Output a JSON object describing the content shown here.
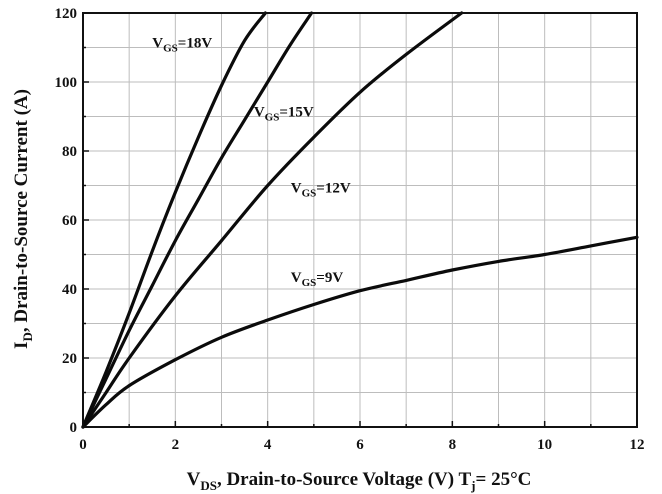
{
  "chart_data": {
    "type": "line",
    "xlabel": {
      "main": "V",
      "sub": "DS",
      "rest": ", Drain-to-Source Voltage (V) T",
      "sub2": "j",
      "tail": "= 25°C"
    },
    "ylabel": {
      "main": "I",
      "sub": "D",
      "rest": ", Drain-to-Source Current (A)"
    },
    "xlim": [
      0,
      12
    ],
    "ylim": [
      0,
      120
    ],
    "xticks": [
      0,
      2,
      4,
      6,
      8,
      10,
      12
    ],
    "yticks": [
      0,
      20,
      40,
      60,
      80,
      100,
      120
    ],
    "grid": true,
    "series": [
      {
        "label_main": "V",
        "label_sub": "GS",
        "label_rest": "=18V",
        "x": [
          0,
          0.5,
          1.0,
          1.5,
          2.0,
          2.5,
          3.0,
          3.5,
          3.95
        ],
        "y": [
          0,
          16,
          33,
          51,
          68,
          84,
          99,
          112,
          120
        ]
      },
      {
        "label_main": "V",
        "label_sub": "GS",
        "label_rest": "=15V",
        "x": [
          0,
          0.5,
          1.0,
          1.5,
          2.0,
          2.5,
          3.0,
          3.5,
          4.0,
          4.5,
          4.95
        ],
        "y": [
          0,
          14,
          28,
          41,
          54,
          66,
          78,
          89,
          100,
          111,
          120
        ]
      },
      {
        "label_main": "V",
        "label_sub": "GS",
        "label_rest": "=12V",
        "x": [
          0,
          0.5,
          1.0,
          2.0,
          3.0,
          4.0,
          5.0,
          6.0,
          7.0,
          8.2
        ],
        "y": [
          0,
          10,
          20,
          38,
          54,
          70,
          84,
          97,
          108,
          120
        ]
      },
      {
        "label_main": "V",
        "label_sub": "GS",
        "label_rest": "=9V",
        "x": [
          0,
          0.5,
          1.0,
          2.0,
          3.0,
          4.0,
          5.0,
          6.0,
          7.0,
          8.0,
          9.0,
          10.0,
          11.0,
          12.0
        ],
        "y": [
          0,
          6.5,
          12,
          19.5,
          26,
          31,
          35.5,
          39.5,
          42.5,
          45.5,
          48,
          50,
          52.5,
          55
        ]
      }
    ],
    "label_anchors": [
      {
        "x": 1.5,
        "y": 110
      },
      {
        "x": 3.7,
        "y": 90
      },
      {
        "x": 4.5,
        "y": 68
      },
      {
        "x": 4.5,
        "y": 42
      }
    ]
  }
}
